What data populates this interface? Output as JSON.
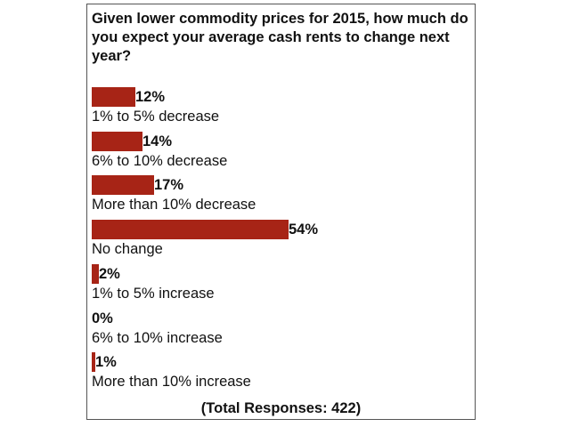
{
  "poll": {
    "question": "Given lower commodity prices for 2015, how much do you expect your average cash rents to change next year?",
    "total_responses": "(Total Responses: 422)"
  },
  "colors": {
    "bar": "#a72416",
    "text": "#111111",
    "border": "#555555"
  },
  "chart_data": {
    "type": "bar",
    "orientation": "horizontal",
    "title": "Given lower commodity prices for 2015, how much do you expect your average cash rents to change next year?",
    "categories": [
      "1% to 5% decrease",
      "6% to 10% decrease",
      "More than 10% decrease",
      "No change",
      "1% to 5% increase",
      "6% to 10% increase",
      "More than 10% increase"
    ],
    "values": [
      12,
      14,
      17,
      54,
      2,
      0,
      1
    ],
    "data_labels": [
      "12%",
      "14%",
      "17%",
      "54%",
      "2%",
      "0%",
      "1%"
    ],
    "unit": "%",
    "grid": false,
    "legend": "none"
  }
}
